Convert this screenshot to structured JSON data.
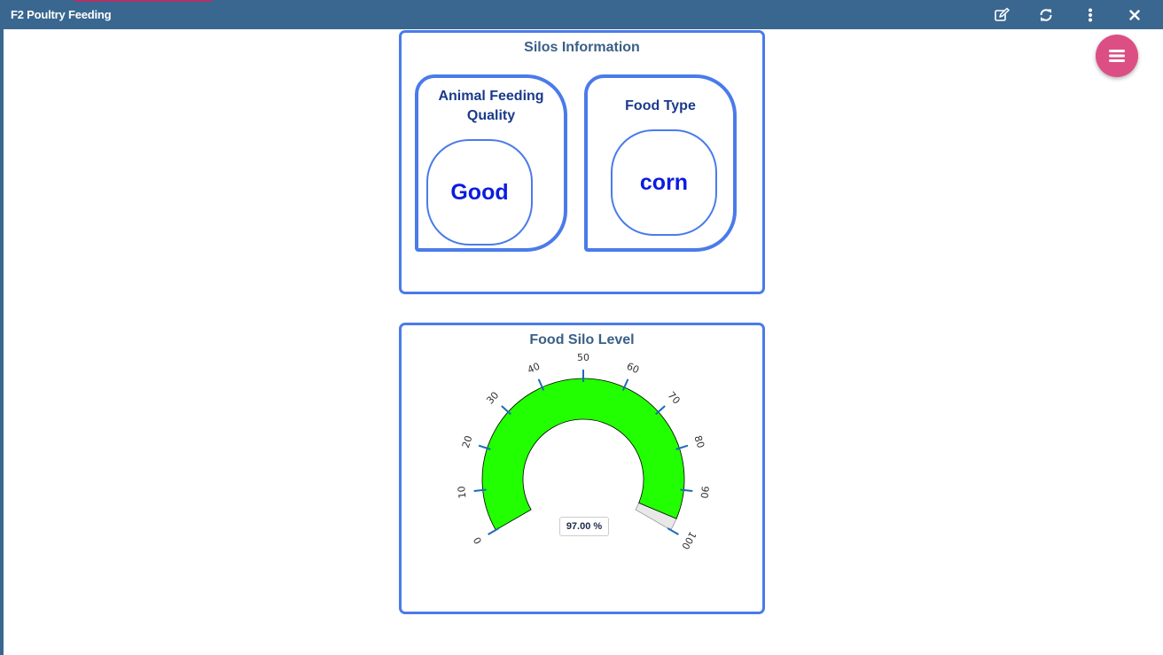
{
  "app": {
    "title": "F2 Poultry Feeding"
  },
  "toolbar": {
    "icons": [
      "edit-icon",
      "refresh-icon",
      "more-vertical-icon",
      "close-icon"
    ]
  },
  "silos": {
    "title": "Silos Information",
    "feeding_quality": {
      "label": "Animal Feeding Quality",
      "value": "Good"
    },
    "food_type": {
      "label": "Food Type",
      "value": "corn"
    }
  },
  "level": {
    "title": "Food Silo Level",
    "value_text": "97.00 %"
  },
  "chart_data": {
    "type": "gauge",
    "min": 0,
    "max": 100,
    "value": 97,
    "ticks": [
      0,
      10,
      20,
      30,
      40,
      50,
      60,
      70,
      80,
      90,
      100
    ],
    "colors": {
      "fill": "#22ff00",
      "remainder": "#e8e8e8",
      "tick": "#1a6bb5"
    }
  },
  "colors": {
    "titlebar": "#3a6790",
    "panel_border": "#4a7bea",
    "value_text": "#0b1ce0",
    "fab": "#dc4f84"
  }
}
